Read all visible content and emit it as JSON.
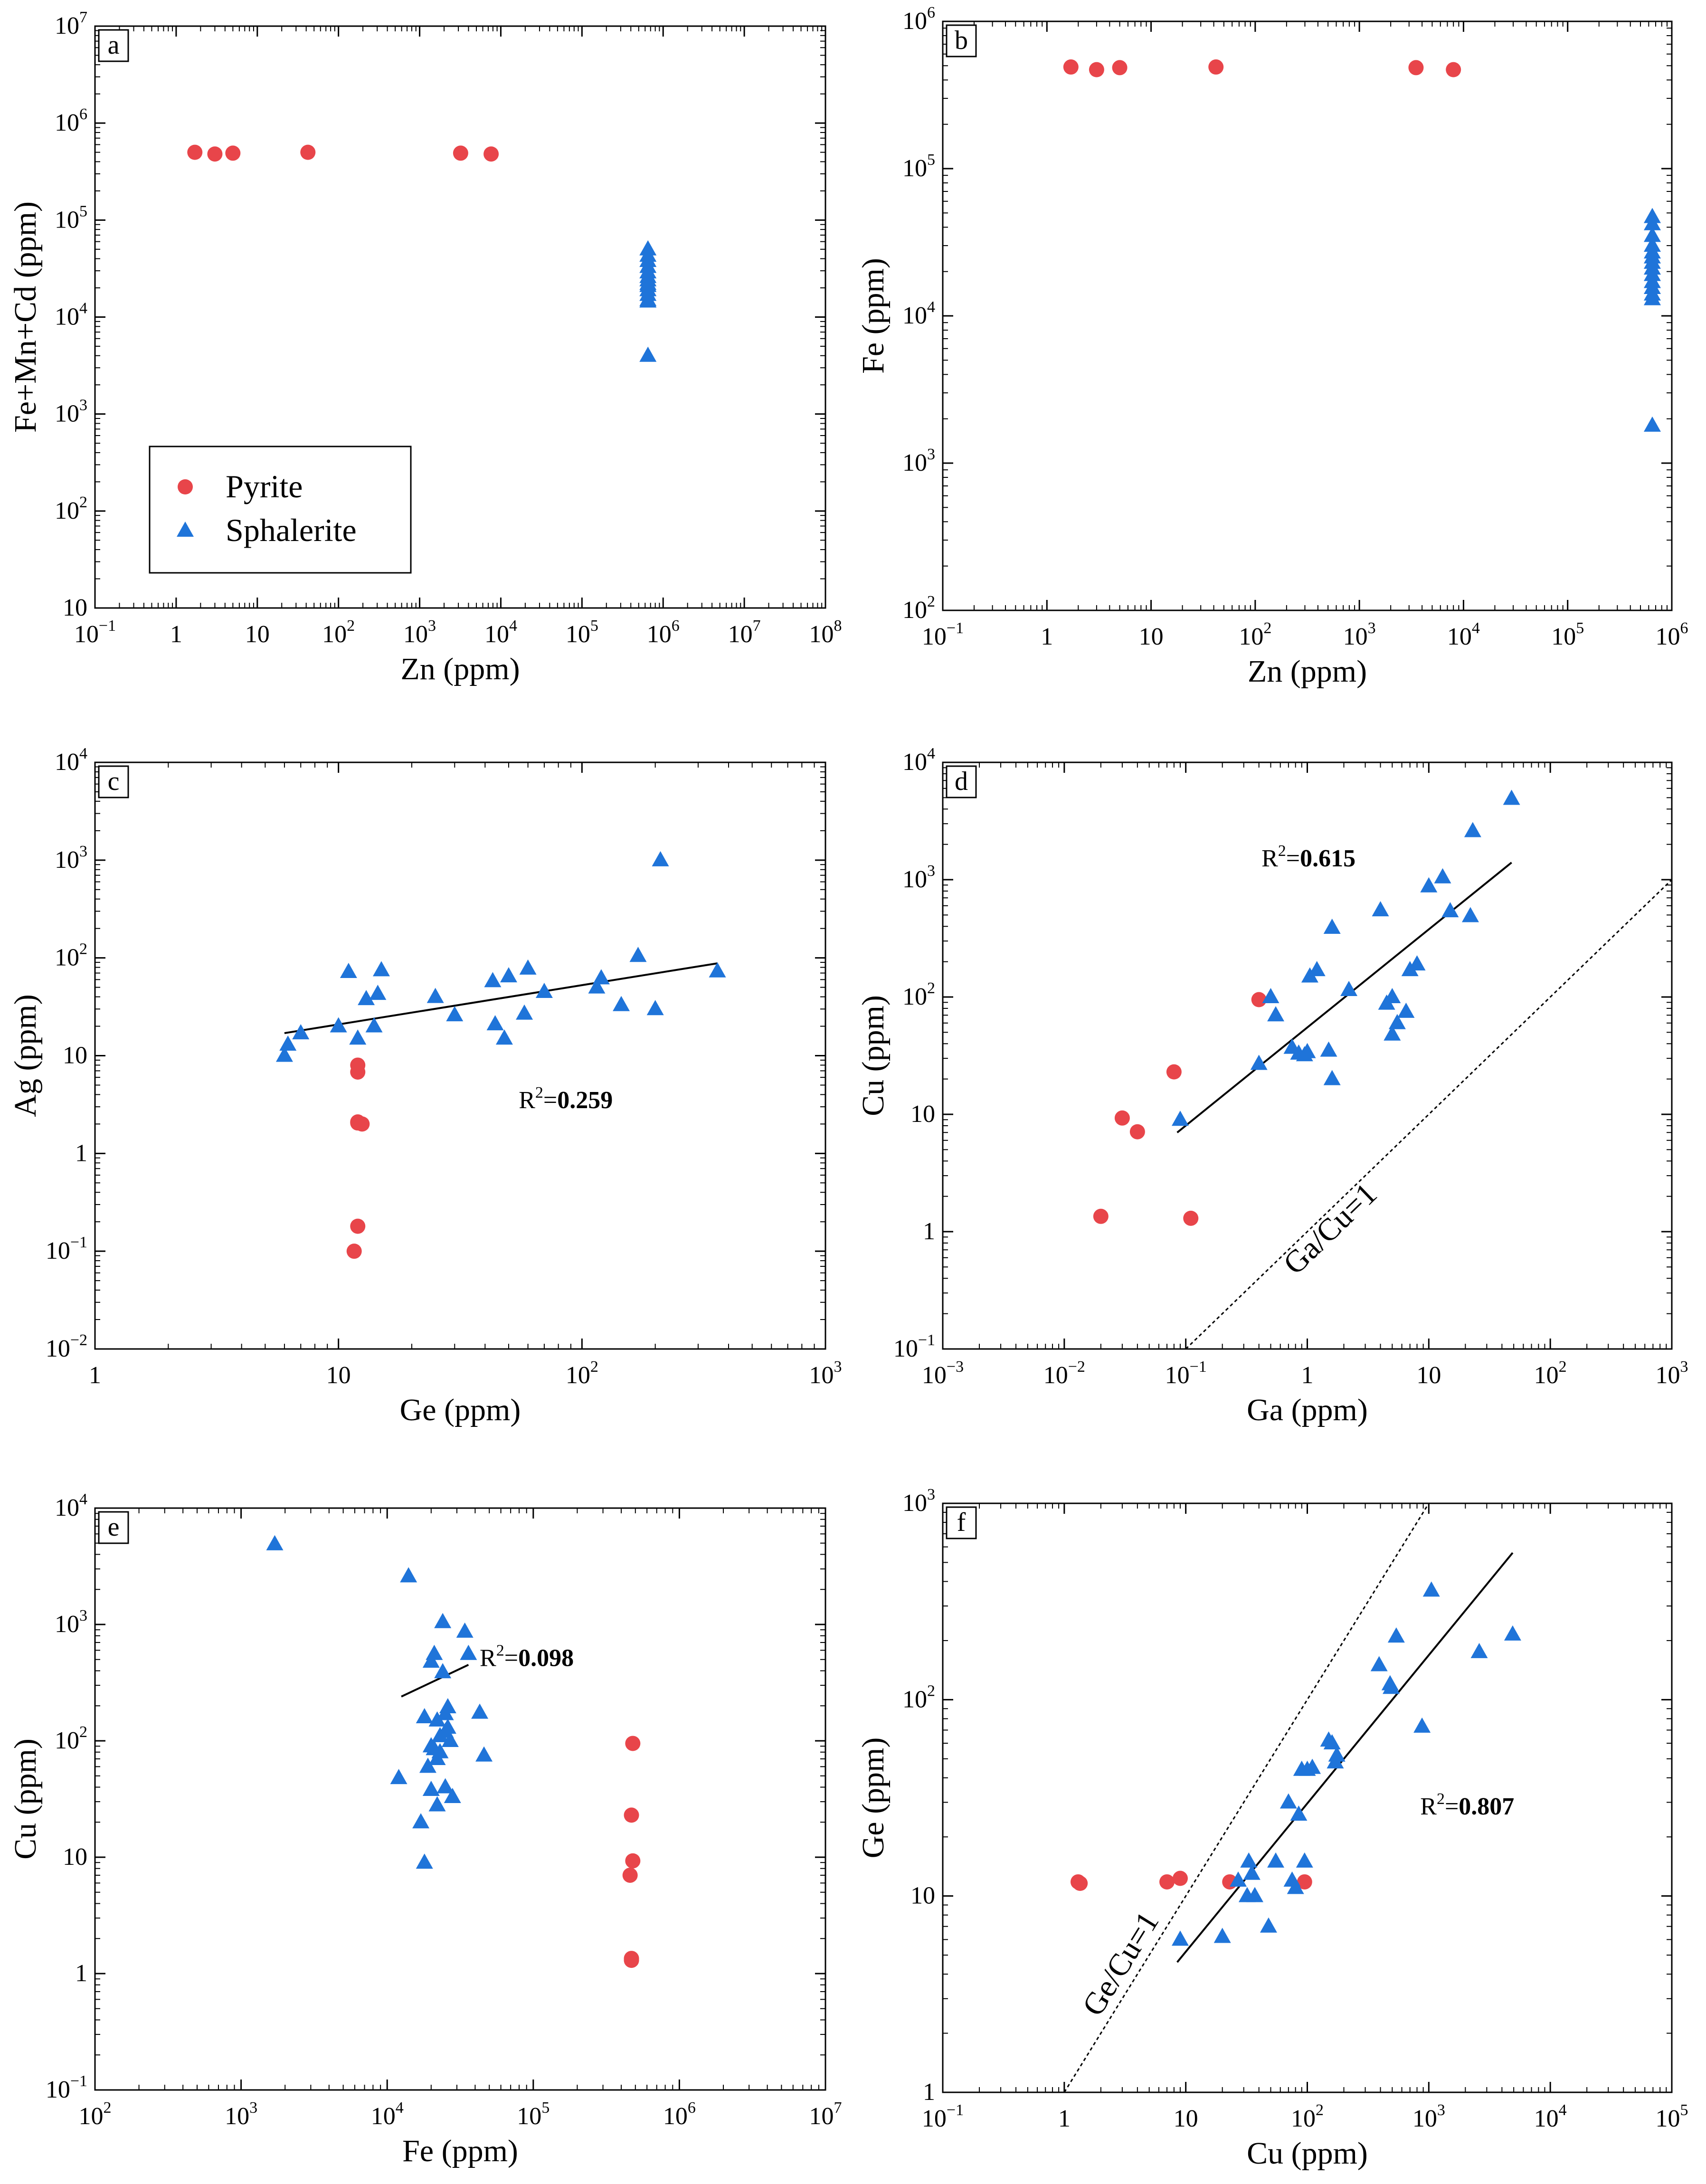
{
  "colors": {
    "pyrite": "#E8454A",
    "sphalerite": "#1F74D9",
    "axis": "#000000"
  },
  "legend": [
    {
      "name": "Pyrite",
      "marker": "circle",
      "color": "#E8454A"
    },
    {
      "name": "Sphalerite",
      "marker": "triangle",
      "color": "#1F74D9"
    }
  ],
  "chart_data": [
    {
      "panel": "a",
      "type": "scatter",
      "xlabel": "Zn (ppm)",
      "ylabel": "Fe+Mn+Cd (ppm)",
      "xscale": "log",
      "yscale": "log",
      "xlim_exp": [
        -1,
        8
      ],
      "ylim_exp": [
        1,
        7
      ],
      "xtick_labels": [
        "10⁻¹",
        "1",
        "10",
        "10²",
        "10³",
        "10⁴",
        "10⁵",
        "10⁶",
        "10⁷",
        "10⁸"
      ],
      "ytick_labels": [
        "10",
        "10²",
        "10³",
        "10⁴",
        "10⁵",
        "10⁶",
        "10⁷"
      ],
      "legend_position": "bottom-left",
      "series": [
        {
          "name": "Pyrite",
          "x": [
            1.7,
            3.0,
            5.0,
            42,
            3200,
            7600
          ],
          "y": [
            500000,
            480000,
            490000,
            500000,
            490000,
            480000
          ]
        },
        {
          "name": "Sphalerite",
          "x": [
            650000,
            650000,
            650000,
            650000,
            650000,
            650000,
            650000,
            650000,
            650000,
            650000,
            650000,
            650000,
            650000,
            650000
          ],
          "y": [
            50000,
            43000,
            38000,
            33000,
            29000,
            26000,
            24000,
            22000,
            21000,
            19000,
            17000,
            15000,
            14500,
            4000
          ]
        }
      ],
      "annotations": []
    },
    {
      "panel": "b",
      "type": "scatter",
      "xlabel": "Zn (ppm)",
      "ylabel": "Fe (ppm)",
      "xscale": "log",
      "yscale": "log",
      "xlim_exp": [
        -1,
        6
      ],
      "ylim_exp": [
        2,
        6
      ],
      "xtick_labels": [
        "10⁻¹",
        "1",
        "10",
        "10²",
        "10³",
        "10⁴",
        "10⁵",
        "10⁶"
      ],
      "ytick_labels": [
        "10²",
        "10³",
        "10⁴",
        "10⁵",
        "10⁶"
      ],
      "series": [
        {
          "name": "Pyrite",
          "x": [
            1.7,
            3.0,
            5.0,
            42,
            3500,
            8000
          ],
          "y": [
            490000,
            470000,
            485000,
            490000,
            485000,
            470000
          ]
        },
        {
          "name": "Sphalerite",
          "x": [
            650000,
            650000,
            650000,
            650000,
            650000,
            650000,
            650000,
            650000,
            650000,
            650000,
            650000,
            650000,
            650000,
            650000
          ],
          "y": [
            47000,
            42000,
            35000,
            30000,
            27000,
            25000,
            23000,
            21000,
            19000,
            17000,
            15500,
            14000,
            13000,
            1800
          ]
        }
      ],
      "annotations": []
    },
    {
      "panel": "c",
      "type": "scatter",
      "xlabel": "Ge (ppm)",
      "ylabel": "Ag (ppm)",
      "xscale": "log",
      "yscale": "log",
      "xlim_exp": [
        0,
        3
      ],
      "ylim_exp": [
        -2,
        4
      ],
      "xtick_labels": [
        "1",
        "10",
        "10²",
        "10³"
      ],
      "ytick_labels": [
        "10⁻²",
        "10⁻¹",
        "1",
        "10",
        "10²",
        "10³",
        "10⁴"
      ],
      "series": [
        {
          "name": "Pyrite",
          "x": [
            12.0,
            12.0,
            12.0,
            12.0,
            12.5,
            12.0,
            11.6
          ],
          "y": [
            8.0,
            6.8,
            2.1,
            2.05,
            2.0,
            0.18,
            0.1
          ]
        },
        {
          "name": "Sphalerite",
          "x": [
            6.0,
            6.2,
            7.0,
            10.0,
            11.0,
            12.0,
            13.0,
            14.0,
            15.0,
            14.5,
            25.0,
            30.0,
            43.0,
            44.0,
            48.0,
            50.0,
            58.0,
            60.0,
            70.0,
            115.0,
            120.0,
            145.0,
            170.0,
            200.0,
            210.0,
            360.0
          ],
          "y": [
            10.0,
            13.0,
            17.0,
            20.0,
            72.0,
            15.0,
            38.0,
            20.0,
            75.0,
            43.0,
            40.0,
            26.0,
            58.0,
            21.0,
            15.0,
            65.0,
            27.0,
            78.0,
            45.0,
            50.0,
            62.0,
            33.0,
            105.0,
            30.0,
            1000.0,
            73.0
          ]
        }
      ],
      "fit_line": {
        "x": [
          6.0,
          360.0
        ],
        "y": [
          17.0,
          88.0
        ]
      },
      "annotations": [
        {
          "text": "R²=0.259",
          "prefix": "R²=",
          "value": "0.259",
          "at": [
            55,
            2.9
          ]
        }
      ]
    },
    {
      "panel": "d",
      "type": "scatter",
      "xlabel": "Ga (ppm)",
      "ylabel": "Cu (ppm)",
      "xscale": "log",
      "yscale": "log",
      "xlim_exp": [
        -3,
        3
      ],
      "ylim_exp": [
        -1,
        4
      ],
      "xtick_labels": [
        "10⁻³",
        "10⁻²",
        "10⁻¹",
        "1",
        "10",
        "10²",
        "10³"
      ],
      "ytick_labels": [
        "10⁻¹",
        "1",
        "10",
        "10²",
        "10³",
        "10⁴"
      ],
      "series": [
        {
          "name": "Pyrite",
          "x": [
            0.4,
            0.08,
            0.03,
            0.04,
            0.02,
            0.11
          ],
          "y": [
            95.0,
            23.0,
            9.3,
            7.1,
            1.35,
            1.3
          ]
        },
        {
          "name": "Sphalerite",
          "x": [
            0.09,
            0.4,
            0.5,
            0.55,
            0.75,
            0.85,
            0.95,
            1.05,
            1.0,
            1.2,
            1.5,
            1.6,
            1.6,
            2.2,
            4.0,
            4.5,
            5.0,
            5.0,
            5.5,
            6.5,
            7.0,
            8.0,
            10.0,
            13.0,
            15.0,
            22.0,
            23.0,
            48.0
          ],
          "y": [
            9.0,
            27.0,
            100.0,
            70.0,
            37.0,
            33.0,
            32.0,
            150.0,
            34.0,
            170.0,
            35.0,
            20.0,
            390.0,
            115.0,
            550.0,
            88.0,
            100.0,
            48.0,
            60.0,
            75.0,
            170.0,
            190.0,
            880.0,
            1050.0,
            540.0,
            490.0,
            2600.0,
            4900.0
          ]
        }
      ],
      "fit_line": {
        "x": [
          0.085,
          48.0
        ],
        "y": [
          7.0,
          1400.0
        ]
      },
      "ref_line": {
        "label": "Ga/Cu=1",
        "x": [
          0.1,
          1000.0
        ],
        "y": [
          0.1,
          1000.0
        ]
      },
      "annotations": [
        {
          "text": "R²=0.615",
          "prefix": "R²=",
          "value": "0.615",
          "at": [
            0.42,
            1300
          ]
        }
      ]
    },
    {
      "panel": "e",
      "type": "scatter",
      "xlabel": "Fe (ppm)",
      "ylabel": "Cu (ppm)",
      "xscale": "log",
      "yscale": "log",
      "xlim_exp": [
        2,
        7
      ],
      "ylim_exp": [
        -1,
        4
      ],
      "xtick_labels": [
        "10²",
        "10³",
        "10⁴",
        "10⁵",
        "10⁶",
        "10⁷"
      ],
      "ytick_labels": [
        "10⁻¹",
        "1",
        "10",
        "10²",
        "10³",
        "10⁴"
      ],
      "series": [
        {
          "name": "Pyrite",
          "x": [
            480000,
            470000,
            480000,
            460000,
            470000,
            470000
          ],
          "y": [
            95.0,
            23.0,
            9.3,
            7.0,
            1.35,
            1.3
          ]
        },
        {
          "name": "Sphalerite",
          "x": [
            1700,
            14000,
            12000,
            17000,
            18000,
            19000,
            20000,
            20000,
            21000,
            22000,
            22000,
            23000,
            23000,
            24000,
            24000,
            25000,
            25000,
            26000,
            26000,
            27000,
            28000,
            34000,
            36000,
            43000,
            46000,
            18000,
            21000,
            25000,
            22000,
            20000
          ],
          "y": [
            4900,
            2600,
            48,
            20,
            9,
            60,
            90,
            480,
            560,
            150,
            28,
            80,
            110,
            390,
            1050,
            170,
            40,
            195,
            130,
            100,
            33,
            870,
            560,
            175,
            75,
            160,
            85,
            120,
            70,
            38
          ]
        }
      ],
      "fit_line": {
        "x": [
          12500,
          36000
        ],
        "y": [
          240.0,
          450.0
        ]
      },
      "annotations": [
        {
          "text": "R²=0.098",
          "prefix": "R²=",
          "value": "0.098",
          "at": [
            43000,
            440
          ]
        }
      ]
    },
    {
      "panel": "f",
      "type": "scatter",
      "xlabel": "Cu (ppm)",
      "ylabel": "Ge (ppm)",
      "xscale": "log",
      "yscale": "log",
      "xlim_exp": [
        -1,
        5
      ],
      "ylim_exp": [
        0,
        3
      ],
      "xtick_labels": [
        "10⁻¹",
        "1",
        "10",
        "10²",
        "10³",
        "10⁴",
        "10⁵"
      ],
      "ytick_labels": [
        "1",
        "10",
        "10²",
        "10³"
      ],
      "series": [
        {
          "name": "Pyrite",
          "x": [
            1.3,
            1.35,
            7.0,
            9.0,
            23.0,
            95.0
          ],
          "y": [
            11.8,
            11.6,
            11.8,
            12.3,
            11.8,
            11.8
          ]
        },
        {
          "name": "Sphalerite",
          "x": [
            9.0,
            20.0,
            27.0,
            32.0,
            33.0,
            35.0,
            37.0,
            48.0,
            55.0,
            70.0,
            75.0,
            80.0,
            85.0,
            90.0,
            95.0,
            100.0,
            110.0,
            150.0,
            160.0,
            170.0,
            175.0,
            390.0,
            480.0,
            490.0,
            540.0,
            880.0,
            1050.0,
            2600.0,
            4900.0
          ],
          "y": [
            6.0,
            6.2,
            12.0,
            10.0,
            15.0,
            13.0,
            10.0,
            7.0,
            15.0,
            30.0,
            12.0,
            11.0,
            26.0,
            44.0,
            15.0,
            44.0,
            45.0,
            62.0,
            60.0,
            48.0,
            52.0,
            150.0,
            120.0,
            115.0,
            210.0,
            73.0,
            360.0,
            175.0,
            215.0
          ]
        }
      ],
      "fit_line": {
        "x": [
          8.5,
          4900.0
        ],
        "y": [
          4.6,
          560.0
        ]
      },
      "ref_line": {
        "label": "Ge/Cu=1",
        "x": [
          1.0,
          1000.0
        ],
        "y": [
          1.0,
          1000.0
        ]
      },
      "annotations": [
        {
          "text": "R²=0.807",
          "prefix": "R²=",
          "value": "0.807",
          "at": [
            850,
            26
          ]
        }
      ]
    }
  ]
}
